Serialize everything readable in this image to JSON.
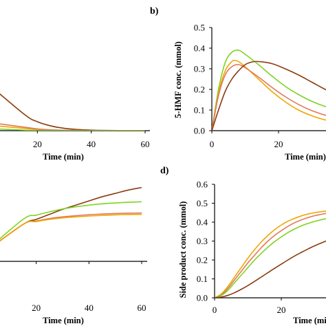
{
  "chart_data": [
    {
      "panel_label": "",
      "type": "line",
      "xlabel": "Time (min)",
      "ylabel": "",
      "xlim": [
        0,
        60
      ],
      "x_ticks": [
        "20",
        "40",
        "60"
      ],
      "y_ticks": [],
      "series": [
        {
          "color": "#8B3A0E",
          "x": [
            0,
            15,
            20,
            25,
            30,
            35,
            40,
            45,
            50,
            55,
            60
          ],
          "values": [
            0.085,
            0.028,
            0.015,
            0.008,
            0.004,
            0.002,
            0.001,
            0.0005,
            0.0002,
            0.0001,
            0
          ]
        },
        {
          "color": "#F0A500",
          "x": [
            0,
            15,
            20,
            25,
            30,
            40,
            50,
            60
          ],
          "values": [
            0.01,
            0.004,
            0.002,
            0.001,
            0.0005,
            0.0002,
            0.0001,
            0
          ]
        },
        {
          "color": "#E07858",
          "x": [
            0,
            15,
            20,
            25,
            30,
            40,
            50,
            60
          ],
          "values": [
            0.015,
            0.006,
            0.003,
            0.0015,
            0.0008,
            0.0003,
            0.0001,
            0
          ]
        },
        {
          "color": "#7ED321",
          "x": [
            0,
            15,
            20,
            25,
            30,
            40,
            50,
            60
          ],
          "values": [
            0.004,
            0.001,
            0.0005,
            0.0002,
            0.0001,
            0,
            0,
            0
          ]
        }
      ]
    },
    {
      "panel_label": "b)",
      "type": "line",
      "xlabel": "Time (min)",
      "ylabel": "5-HMF conc. (mmol)",
      "xlim": [
        0,
        40
      ],
      "ylim": [
        0,
        0.5
      ],
      "x_ticks": [
        "0",
        "20"
      ],
      "y_ticks": [
        "0.0",
        "0.1",
        "0.2",
        "0.3",
        "0.4",
        "0.5"
      ],
      "series": [
        {
          "color": "#7ED321",
          "x": [
            0,
            2,
            4,
            6,
            8,
            10,
            14,
            18,
            22,
            26,
            30,
            34,
            38,
            40
          ],
          "values": [
            0,
            0.2,
            0.33,
            0.38,
            0.39,
            0.37,
            0.32,
            0.265,
            0.215,
            0.175,
            0.142,
            0.117,
            0.1,
            0.093
          ]
        },
        {
          "color": "#F0A500",
          "x": [
            0,
            2,
            4,
            6,
            7,
            8,
            10,
            14,
            18,
            22,
            26,
            30,
            34,
            38,
            40
          ],
          "values": [
            0,
            0.18,
            0.29,
            0.335,
            0.34,
            0.335,
            0.31,
            0.25,
            0.19,
            0.14,
            0.1,
            0.072,
            0.052,
            0.038,
            0.033
          ]
        },
        {
          "color": "#E07858",
          "x": [
            0,
            2,
            4,
            6,
            8,
            10,
            14,
            18,
            22,
            26,
            30,
            34,
            38,
            40
          ],
          "values": [
            0,
            0.17,
            0.27,
            0.31,
            0.32,
            0.305,
            0.26,
            0.21,
            0.165,
            0.127,
            0.097,
            0.075,
            0.058,
            0.052
          ]
        },
        {
          "color": "#8B3A0E",
          "x": [
            0,
            2,
            4,
            6,
            8,
            10,
            12,
            14,
            18,
            22,
            26,
            30,
            34,
            38,
            40
          ],
          "values": [
            0,
            0.1,
            0.19,
            0.25,
            0.29,
            0.32,
            0.333,
            0.335,
            0.325,
            0.3,
            0.27,
            0.235,
            0.2,
            0.17,
            0.155
          ]
        }
      ]
    },
    {
      "panel_label": "",
      "type": "line",
      "xlabel": "Time (min)",
      "ylabel": "",
      "xlim": [
        0,
        60
      ],
      "x_ticks": [
        "20",
        "40",
        "60"
      ],
      "y_ticks": [],
      "series": [
        {
          "color": "#8B3A0E",
          "x": [
            0,
            15,
            20,
            25,
            30,
            35,
            40,
            45,
            50,
            55,
            60
          ],
          "values": [
            0,
            0.17,
            0.2,
            0.23,
            0.26,
            0.285,
            0.31,
            0.335,
            0.355,
            0.375,
            0.39
          ]
        },
        {
          "color": "#7ED321",
          "x": [
            0,
            15,
            20,
            25,
            30,
            35,
            40,
            45,
            50,
            55,
            60
          ],
          "values": [
            0,
            0.2,
            0.225,
            0.245,
            0.262,
            0.275,
            0.285,
            0.293,
            0.298,
            0.302,
            0.305
          ]
        },
        {
          "color": "#E07858",
          "x": [
            0,
            15,
            20,
            25,
            30,
            35,
            40,
            45,
            50,
            55,
            60
          ],
          "values": [
            0,
            0.17,
            0.19,
            0.205,
            0.215,
            0.222,
            0.228,
            0.232,
            0.235,
            0.237,
            0.238
          ]
        },
        {
          "color": "#F0A500",
          "x": [
            0,
            15,
            20,
            25,
            30,
            35,
            40,
            45,
            50,
            55,
            60
          ],
          "values": [
            0,
            0.17,
            0.187,
            0.2,
            0.209,
            0.215,
            0.22,
            0.224,
            0.227,
            0.229,
            0.23
          ]
        }
      ]
    },
    {
      "panel_label": "d)",
      "type": "line",
      "xlabel": "Time (min)",
      "ylabel": "Side product conc. (mmol)",
      "xlim": [
        0,
        40
      ],
      "ylim": [
        0,
        0.6
      ],
      "x_ticks": [
        "0",
        "20"
      ],
      "y_ticks": [
        "0.0",
        "0.1",
        "0.2",
        "0.3",
        "0.4",
        "0.5",
        "0.6"
      ],
      "series": [
        {
          "color": "#F0A500",
          "x": [
            0,
            2,
            4,
            6,
            8,
            10,
            12,
            14,
            16,
            18,
            20,
            22,
            24,
            26,
            28,
            30,
            34,
            38,
            40
          ],
          "values": [
            0,
            0.02,
            0.06,
            0.11,
            0.16,
            0.21,
            0.255,
            0.295,
            0.33,
            0.36,
            0.385,
            0.405,
            0.42,
            0.433,
            0.443,
            0.45,
            0.46,
            0.465,
            0.467
          ]
        },
        {
          "color": "#E07858",
          "x": [
            0,
            2,
            4,
            6,
            8,
            10,
            12,
            14,
            16,
            18,
            20,
            22,
            24,
            26,
            28,
            30,
            34,
            38,
            40
          ],
          "values": [
            0,
            0.015,
            0.05,
            0.095,
            0.14,
            0.185,
            0.225,
            0.265,
            0.3,
            0.33,
            0.355,
            0.378,
            0.397,
            0.412,
            0.424,
            0.434,
            0.448,
            0.456,
            0.459
          ]
        },
        {
          "color": "#7ED321",
          "x": [
            0,
            2,
            4,
            6,
            8,
            10,
            12,
            14,
            16,
            18,
            20,
            22,
            24,
            26,
            28,
            30,
            34,
            38,
            40
          ],
          "values": [
            0,
            0.012,
            0.04,
            0.08,
            0.12,
            0.16,
            0.2,
            0.235,
            0.268,
            0.297,
            0.322,
            0.345,
            0.364,
            0.38,
            0.393,
            0.404,
            0.42,
            0.43,
            0.434
          ]
        },
        {
          "color": "#8B3A0E",
          "x": [
            0,
            2,
            4,
            6,
            8,
            10,
            12,
            14,
            16,
            18,
            20,
            22,
            24,
            26,
            28,
            30,
            34,
            38,
            40
          ],
          "values": [
            0,
            0.004,
            0.013,
            0.027,
            0.045,
            0.065,
            0.087,
            0.11,
            0.133,
            0.156,
            0.178,
            0.2,
            0.221,
            0.24,
            0.258,
            0.275,
            0.304,
            0.327,
            0.337
          ]
        }
      ]
    }
  ]
}
